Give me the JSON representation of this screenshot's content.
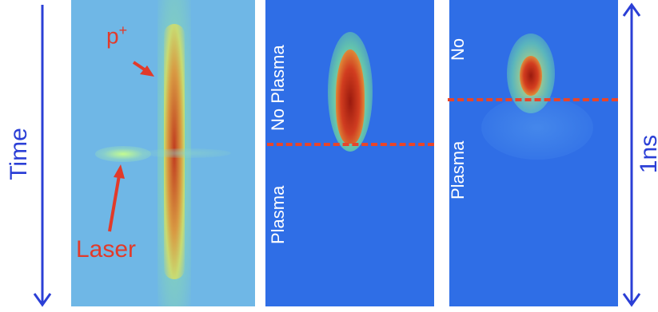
{
  "left_axis": {
    "label": "Time"
  },
  "right_axis": {
    "label": "1ns"
  },
  "panels": {
    "streak": {
      "proton_label": "p",
      "proton_sup": "+",
      "laser_label": "Laser"
    },
    "mid": {
      "label_top": "No Plasma",
      "label_bottom": "Plasma"
    },
    "right": {
      "label_top": "No",
      "label_bottom": "Plasma"
    }
  },
  "colors": {
    "arrow_blue": "#2b3fd6",
    "annotation_red": "#e23a2a",
    "dash_red": "#e8452a",
    "panel_left_bg": "#6fb7e6",
    "panel_bg": "#2f6ee6"
  }
}
